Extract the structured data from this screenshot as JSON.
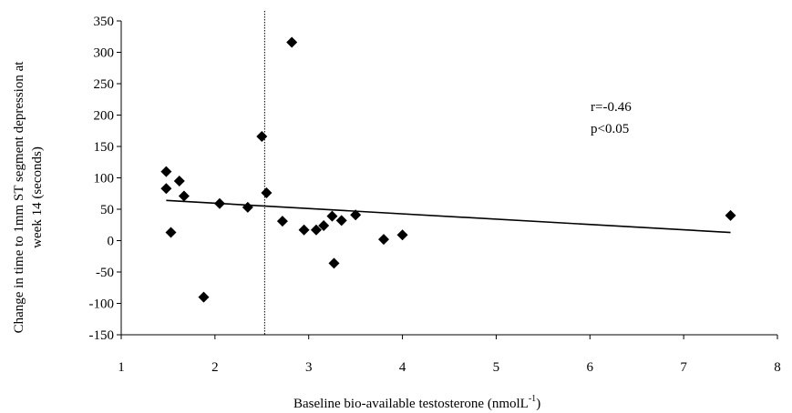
{
  "chart_data": {
    "type": "scatter",
    "title": "",
    "xlabel_main": "Baseline bio-available testosterone (nmolL",
    "xlabel_sup": "-1",
    "xlabel_close": ")",
    "ylabel_line1": "Change in  time to 1mm ST segment depression at",
    "ylabel_line2": "week 14 (seconds)",
    "xlim": [
      1,
      8
    ],
    "ylim": [
      -150,
      350
    ],
    "xticks": [
      "1",
      "2",
      "3",
      "4",
      "5",
      "6",
      "7",
      "8"
    ],
    "yticks": [
      "350",
      "300",
      "250",
      "200",
      "150",
      "100",
      "50",
      "0",
      "-50",
      "-100",
      "-150"
    ],
    "grid": false,
    "marker": "diamond",
    "points": [
      {
        "x": 1.48,
        "y": 110
      },
      {
        "x": 1.48,
        "y": 83
      },
      {
        "x": 1.53,
        "y": 13
      },
      {
        "x": 1.62,
        "y": 95
      },
      {
        "x": 1.67,
        "y": 71
      },
      {
        "x": 1.88,
        "y": -90
      },
      {
        "x": 2.05,
        "y": 59
      },
      {
        "x": 2.35,
        "y": 53
      },
      {
        "x": 2.5,
        "y": 166
      },
      {
        "x": 2.55,
        "y": 76
      },
      {
        "x": 2.72,
        "y": 31
      },
      {
        "x": 2.82,
        "y": 316
      },
      {
        "x": 2.95,
        "y": 17
      },
      {
        "x": 3.08,
        "y": 17
      },
      {
        "x": 3.16,
        "y": 24
      },
      {
        "x": 3.25,
        "y": 39
      },
      {
        "x": 3.27,
        "y": -36
      },
      {
        "x": 3.35,
        "y": 32
      },
      {
        "x": 3.5,
        "y": 41
      },
      {
        "x": 3.8,
        "y": 2
      },
      {
        "x": 4.0,
        "y": 9
      },
      {
        "x": 7.5,
        "y": 40
      }
    ],
    "regression_line": {
      "x": [
        1.48,
        7.5
      ],
      "y": [
        64,
        13
      ]
    },
    "reference_line_x": 2.53,
    "annotations": [
      "r=-0.46",
      "p<0.05"
    ]
  }
}
